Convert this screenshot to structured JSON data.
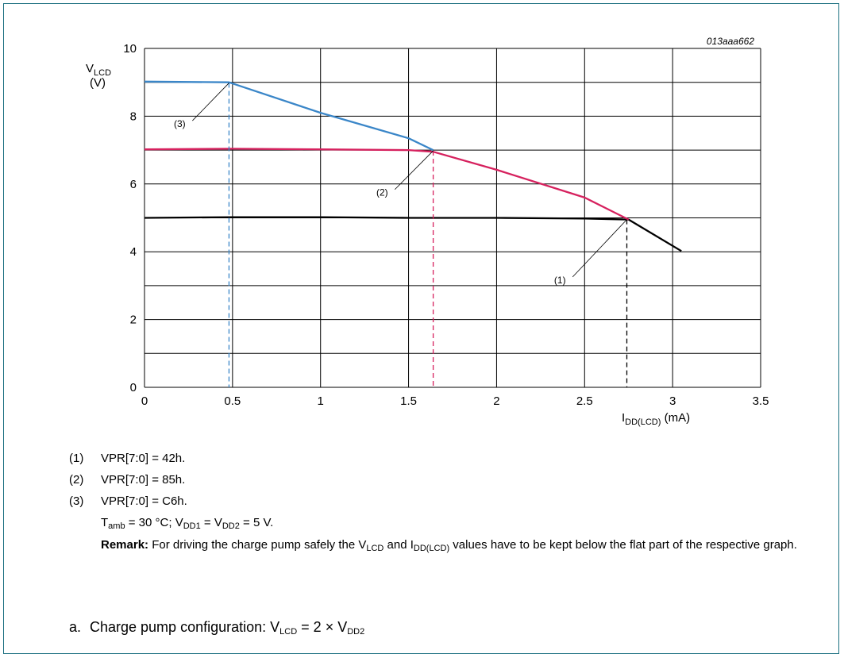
{
  "chart_data": {
    "type": "line",
    "figure_id": "013aaa662",
    "ylabel_main": "V",
    "ylabel_sub": "LCD",
    "ylabel_unit": "(V)",
    "xlabel_main": "I",
    "xlabel_sub": "DD(LCD)",
    "xlabel_unit": "(mA)",
    "xlim": [
      0,
      3.5
    ],
    "ylim": [
      0,
      10
    ],
    "x_ticks": [
      "0",
      "0.5",
      "1",
      "1.5",
      "2",
      "2.5",
      "3",
      "3.5"
    ],
    "x_tick_values": [
      0,
      0.5,
      1,
      1.5,
      2,
      2.5,
      3,
      3.5
    ],
    "y_ticks": [
      "0",
      "2",
      "4",
      "6",
      "8",
      "10"
    ],
    "y_tick_values": [
      0,
      2,
      4,
      6,
      8,
      10
    ],
    "grid": true,
    "series": [
      {
        "id": "(1)",
        "color": "#000000",
        "x": [
          0,
          0.5,
          1.0,
          1.5,
          2.0,
          2.5,
          2.75,
          3.05
        ],
        "y": [
          5.0,
          5.02,
          5.02,
          5.0,
          5.0,
          4.98,
          4.95,
          4.02
        ],
        "marker_x": 2.74,
        "label_pos": [
          2.36,
          3.07
        ],
        "leader_to": [
          2.74,
          4.95
        ]
      },
      {
        "id": "(2)",
        "color": "#d6215e",
        "x": [
          0,
          0.5,
          1.0,
          1.5,
          1.64,
          2.0,
          2.5,
          2.75
        ],
        "y": [
          7.02,
          7.04,
          7.02,
          7.0,
          6.95,
          6.42,
          5.6,
          4.95
        ],
        "marker_x": 1.64,
        "label_pos": [
          1.35,
          5.65
        ],
        "leader_to": [
          1.64,
          6.98
        ]
      },
      {
        "id": "(3)",
        "color": "#3a86c8",
        "x": [
          0,
          0.48,
          1.0,
          1.5,
          1.64
        ],
        "y": [
          9.02,
          9.0,
          8.1,
          7.35,
          7.0
        ],
        "marker_x": 0.48,
        "label_pos": [
          0.2,
          7.68
        ],
        "leader_to": [
          0.48,
          8.98
        ]
      }
    ]
  },
  "notes": [
    {
      "num": "(1)",
      "text": "VPR[7:0] = 42h."
    },
    {
      "num": "(2)",
      "text": "VPR[7:0] = 85h."
    },
    {
      "num": "(3)",
      "text": "VPR[7:0] = C6h."
    }
  ],
  "conditions": {
    "t": "T",
    "t_sub": "amb",
    "t_val": " = 30 °C; V",
    "v1_sub": "DD1",
    "v_mid": " = V",
    "v2_sub": "DD2",
    "v_end": " = 5 V."
  },
  "remark": {
    "label": "Remark:",
    "part1": " For driving the charge pump safely the V",
    "sub1": "LCD",
    "part2": " and I",
    "sub2": "DD(LCD)",
    "part3": " values have to be kept below the flat part of the respective graph."
  },
  "caption": {
    "label": "a.",
    "text1": "Charge pump configuration: V",
    "sub1": "LCD",
    "text2": " = 2 × V",
    "sub2": "DD2"
  }
}
